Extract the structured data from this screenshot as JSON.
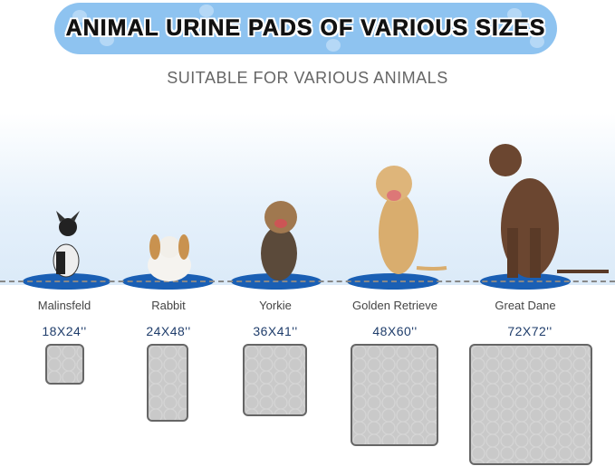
{
  "banner": {
    "title": "ANIMAL URINE PADS OF VARIOUS SIZES"
  },
  "subtitle": "SUITABLE FOR VARIOUS ANIMALS",
  "colors": {
    "banner": "#8ec3f0",
    "mat": "#1a5fb4",
    "size_text": "#1f3d6b"
  },
  "animals": [
    {
      "name": "Malinsfeld",
      "size": "18X24''"
    },
    {
      "name": "Rabbit",
      "size": "24X48''"
    },
    {
      "name": "Yorkie",
      "size": "36X41''"
    },
    {
      "name": "Golden Retrieve",
      "size": "48X60''"
    },
    {
      "name": "Great Dane",
      "size": "72X72''"
    }
  ]
}
